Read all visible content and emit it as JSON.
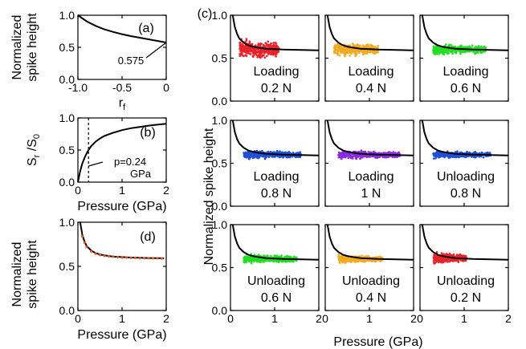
{
  "figure": {
    "ylabel_c": "Normalized spike height",
    "xlabel_c": "Pressure (GPa)"
  },
  "chart_data": [
    {
      "id": "a",
      "panel_label": "(a)",
      "type": "line",
      "xlabel": "r_f",
      "ylabel_lines": [
        "Normalized",
        "spike height"
      ],
      "xlim": [
        -1.0,
        0
      ],
      "ylim": [
        0,
        1.0
      ],
      "xticks": [
        -1.0,
        -0.5,
        0
      ],
      "xtick_labels": [
        "-1.0",
        "-0.5",
        "0"
      ],
      "yticks": [
        0,
        0.5,
        1.0
      ],
      "ytick_labels": [
        "0.0",
        "0.5",
        "1.0"
      ],
      "series": [
        {
          "x": [
            -1.0,
            -0.9,
            -0.8,
            -0.7,
            -0.6,
            -0.5,
            -0.4,
            -0.3,
            -0.2,
            -0.1,
            0.0
          ],
          "y": [
            1.0,
            0.905,
            0.835,
            0.78,
            0.74,
            0.705,
            0.675,
            0.65,
            0.625,
            0.6,
            0.575
          ]
        }
      ],
      "annotation": "0.575",
      "annotation_point": [
        0.0,
        0.575
      ]
    },
    {
      "id": "b",
      "panel_label": "(b)",
      "type": "line",
      "xlabel": "Pressure (GPa)",
      "ylabel": "S_r /S_0",
      "xlim": [
        0,
        2
      ],
      "ylim": [
        0,
        1.0
      ],
      "xticks": [
        0,
        1,
        2
      ],
      "xtick_labels": [
        "0",
        "1",
        "2"
      ],
      "yticks": [
        0,
        0.5,
        1.0
      ],
      "ytick_labels": [
        "0.0",
        "0.5",
        "1.0"
      ],
      "series": [
        {
          "x": [
            0.0,
            0.05,
            0.1,
            0.15,
            0.2,
            0.24,
            0.3,
            0.4,
            0.5,
            0.6,
            0.8,
            1.0,
            1.2,
            1.4,
            1.6,
            1.8,
            2.0
          ],
          "y": [
            0.0,
            0.17,
            0.29,
            0.38,
            0.45,
            0.5,
            0.56,
            0.63,
            0.68,
            0.72,
            0.77,
            0.81,
            0.84,
            0.86,
            0.88,
            0.895,
            0.91
          ]
        }
      ],
      "vline_x": 0.24,
      "annotation_lines": [
        "p=0.24",
        "GPa"
      ]
    },
    {
      "id": "d",
      "panel_label": "(d)",
      "type": "line",
      "xlabel": "Pressure (GPa)",
      "ylabel_lines": [
        "Normalized",
        "spike height"
      ],
      "xlim": [
        0,
        2
      ],
      "ylim": [
        0,
        1.0
      ],
      "xticks": [
        0,
        1,
        2
      ],
      "xtick_labels": [
        "0",
        "1",
        "2"
      ],
      "yticks": [
        0,
        0.5,
        1.0
      ],
      "ytick_labels": [
        "0.0",
        "0.5",
        "1.0"
      ],
      "curve_color": "#000000",
      "marker_color": "#d9582b",
      "series": [
        {
          "x": [
            0.05,
            0.1,
            0.15,
            0.2,
            0.3,
            0.4,
            0.5,
            0.6,
            0.8,
            1.0,
            1.2,
            1.4,
            1.6,
            1.8,
            1.95
          ],
          "y": [
            1.0,
            0.86,
            0.78,
            0.73,
            0.68,
            0.65,
            0.635,
            0.625,
            0.61,
            0.605,
            0.6,
            0.598,
            0.595,
            0.593,
            0.592
          ]
        },
        {
          "x": [
            0.1,
            0.15,
            0.2,
            0.3,
            0.4,
            0.5,
            0.6,
            0.7,
            0.8,
            0.9,
            1.0,
            1.1,
            1.2,
            1.3,
            1.4,
            1.5,
            1.6,
            1.7,
            1.8,
            1.9
          ],
          "y": [
            0.84,
            0.77,
            0.72,
            0.67,
            0.645,
            0.63,
            0.62,
            0.615,
            0.61,
            0.605,
            0.6,
            0.6,
            0.598,
            0.596,
            0.595,
            0.594,
            0.593,
            0.592,
            0.592,
            0.59
          ]
        }
      ]
    },
    {
      "id": "c",
      "panel_label": "(c)",
      "type": "scatter",
      "xlabel": "Pressure (GPa)",
      "ylabel": "Normalized spike height",
      "xlim": [
        0,
        2
      ],
      "ylim": [
        0,
        1.0
      ],
      "xticks": [
        0,
        1,
        2
      ],
      "xtick_labels": [
        "0",
        "1",
        "2"
      ],
      "yticks": [
        0,
        0.5,
        1.0
      ],
      "ytick_labels": [
        "0.0",
        "0.5",
        "1.0"
      ],
      "fit_curve": {
        "x": [
          0.05,
          0.1,
          0.15,
          0.2,
          0.3,
          0.4,
          0.5,
          0.6,
          0.8,
          1.0,
          1.2,
          1.4,
          1.6,
          1.8,
          2.0
        ],
        "y": [
          1.0,
          0.86,
          0.78,
          0.73,
          0.68,
          0.65,
          0.635,
          0.625,
          0.61,
          0.605,
          0.6,
          0.598,
          0.595,
          0.593,
          0.592
        ]
      },
      "subpanels": [
        {
          "label_lines": [
            "Loading",
            "0.2 N"
          ],
          "color": "#e8242a",
          "x_range": [
            0.2,
            1.1
          ],
          "mean": 0.6,
          "spread": 0.09,
          "count": 400
        },
        {
          "label_lines": [
            "Loading",
            "0.4 N"
          ],
          "color": "#f2aa22",
          "x_range": [
            0.2,
            1.2
          ],
          "mean": 0.6,
          "spread": 0.06,
          "count": 450
        },
        {
          "label_lines": [
            "Loading",
            "0.6 N"
          ],
          "color": "#22dd22",
          "x_range": [
            0.3,
            1.5
          ],
          "mean": 0.6,
          "spread": 0.05,
          "count": 450
        },
        {
          "label_lines": [
            "Loading",
            "0.8 N"
          ],
          "color": "#1f4fd9",
          "x_range": [
            0.3,
            1.6
          ],
          "mean": 0.6,
          "spread": 0.04,
          "count": 450
        },
        {
          "label_lines": [
            "Loading",
            "1 N"
          ],
          "color": "#8a2be2",
          "x_range": [
            0.3,
            1.7
          ],
          "mean": 0.6,
          "spread": 0.04,
          "count": 500
        },
        {
          "label_lines": [
            "Unloading",
            "0.8 N"
          ],
          "color": "#1f4fd9",
          "x_range": [
            0.3,
            1.6
          ],
          "mean": 0.6,
          "spread": 0.035,
          "count": 450
        },
        {
          "label_lines": [
            "Unloading",
            "0.6 N"
          ],
          "color": "#22dd22",
          "x_range": [
            0.3,
            1.5
          ],
          "mean": 0.6,
          "spread": 0.04,
          "count": 420
        },
        {
          "label_lines": [
            "Unloading",
            "0.4 N"
          ],
          "color": "#f2aa22",
          "x_range": [
            0.3,
            1.3
          ],
          "mean": 0.6,
          "spread": 0.04,
          "count": 400
        },
        {
          "label_lines": [
            "Unloading",
            "0.2 N"
          ],
          "color": "#e8242a",
          "x_range": [
            0.3,
            1.05
          ],
          "mean": 0.61,
          "spread": 0.05,
          "count": 350
        }
      ]
    }
  ]
}
